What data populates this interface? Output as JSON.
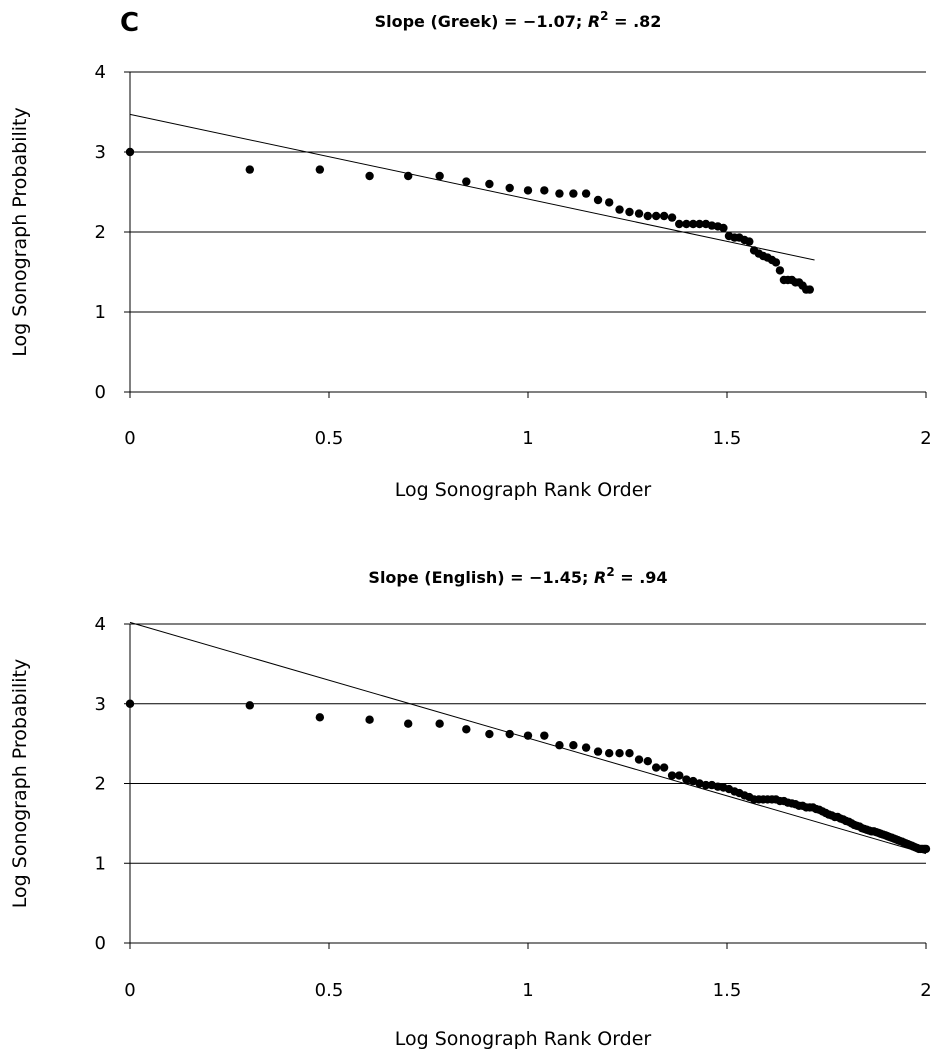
{
  "panel_letter": "C",
  "chart_data": [
    {
      "type": "scatter",
      "title_prefix": "Slope (Greek) = −1.07; ",
      "title_r": "R",
      "title_sup": "2",
      "title_suffix": " = .82",
      "xlabel": "Log Sonograph Rank Order",
      "ylabel": "Log  Sonograph Probability",
      "xlim": [
        0,
        2
      ],
      "ylim": [
        0,
        4
      ],
      "x_ticks": [
        "0",
        "0.5",
        "1",
        "1.5",
        "2"
      ],
      "y_ticks": [
        "0",
        "1",
        "2",
        "3",
        "4"
      ],
      "gridlines": "horizontal",
      "fit_line": {
        "x": [
          0,
          1.72
        ],
        "y": [
          3.47,
          1.65
        ]
      },
      "points": [
        [
          0,
          3.0
        ],
        [
          0.301,
          2.78
        ],
        [
          0.477,
          2.78
        ],
        [
          0.602,
          2.7
        ],
        [
          0.699,
          2.7
        ],
        [
          0.778,
          2.7
        ],
        [
          0.845,
          2.63
        ],
        [
          0.903,
          2.6
        ],
        [
          0.954,
          2.55
        ],
        [
          1.0,
          2.52
        ],
        [
          1.041,
          2.52
        ],
        [
          1.079,
          2.48
        ],
        [
          1.114,
          2.48
        ],
        [
          1.146,
          2.48
        ],
        [
          1.176,
          2.4
        ],
        [
          1.204,
          2.37
        ],
        [
          1.23,
          2.28
        ],
        [
          1.255,
          2.25
        ],
        [
          1.279,
          2.23
        ],
        [
          1.301,
          2.2
        ],
        [
          1.322,
          2.2
        ],
        [
          1.342,
          2.2
        ],
        [
          1.362,
          2.18
        ],
        [
          1.38,
          2.1
        ],
        [
          1.398,
          2.1
        ],
        [
          1.415,
          2.1
        ],
        [
          1.431,
          2.1
        ],
        [
          1.447,
          2.1
        ],
        [
          1.462,
          2.08
        ],
        [
          1.477,
          2.07
        ],
        [
          1.491,
          2.05
        ],
        [
          1.505,
          1.95
        ],
        [
          1.519,
          1.93
        ],
        [
          1.531,
          1.93
        ],
        [
          1.544,
          1.9
        ],
        [
          1.556,
          1.88
        ],
        [
          1.568,
          1.77
        ],
        [
          1.58,
          1.73
        ],
        [
          1.591,
          1.7
        ],
        [
          1.602,
          1.68
        ],
        [
          1.613,
          1.65
        ],
        [
          1.623,
          1.62
        ],
        [
          1.633,
          1.52
        ],
        [
          1.643,
          1.4
        ],
        [
          1.653,
          1.4
        ],
        [
          1.663,
          1.4
        ],
        [
          1.672,
          1.37
        ],
        [
          1.681,
          1.37
        ],
        [
          1.69,
          1.33
        ],
        [
          1.699,
          1.28
        ],
        [
          1.708,
          1.28
        ]
      ]
    },
    {
      "type": "scatter",
      "title_prefix": "Slope (English) = −1.45; ",
      "title_r": "R",
      "title_sup": "2",
      "title_suffix": " = .94",
      "xlabel": "Log Sonograph Rank Order",
      "ylabel": "Log Sonograph Probability",
      "xlim": [
        0,
        2
      ],
      "ylim": [
        0,
        4
      ],
      "x_ticks": [
        "0",
        "0.5",
        "1",
        "1.5",
        "2"
      ],
      "y_ticks": [
        "0",
        "1",
        "2",
        "3",
        "4"
      ],
      "gridlines": "horizontal",
      "fit_line": {
        "x": [
          0,
          2.0
        ],
        "y": [
          4.02,
          1.12
        ]
      },
      "points": [
        [
          0,
          3.0
        ],
        [
          0.301,
          2.98
        ],
        [
          0.477,
          2.83
        ],
        [
          0.602,
          2.8
        ],
        [
          0.699,
          2.75
        ],
        [
          0.778,
          2.75
        ],
        [
          0.845,
          2.68
        ],
        [
          0.903,
          2.62
        ],
        [
          0.954,
          2.62
        ],
        [
          1.0,
          2.6
        ],
        [
          1.041,
          2.6
        ],
        [
          1.079,
          2.48
        ],
        [
          1.114,
          2.48
        ],
        [
          1.146,
          2.45
        ],
        [
          1.176,
          2.4
        ],
        [
          1.204,
          2.38
        ],
        [
          1.23,
          2.38
        ],
        [
          1.255,
          2.38
        ],
        [
          1.279,
          2.3
        ],
        [
          1.301,
          2.28
        ],
        [
          1.322,
          2.2
        ],
        [
          1.342,
          2.2
        ],
        [
          1.362,
          2.1
        ],
        [
          1.38,
          2.1
        ],
        [
          1.398,
          2.05
        ],
        [
          1.415,
          2.03
        ],
        [
          1.431,
          2.0
        ],
        [
          1.447,
          1.98
        ],
        [
          1.462,
          1.98
        ],
        [
          1.477,
          1.96
        ],
        [
          1.491,
          1.95
        ],
        [
          1.505,
          1.93
        ],
        [
          1.519,
          1.9
        ],
        [
          1.531,
          1.88
        ],
        [
          1.544,
          1.85
        ],
        [
          1.556,
          1.83
        ],
        [
          1.568,
          1.8
        ],
        [
          1.58,
          1.8
        ],
        [
          1.591,
          1.8
        ],
        [
          1.602,
          1.8
        ],
        [
          1.613,
          1.8
        ],
        [
          1.623,
          1.8
        ],
        [
          1.633,
          1.78
        ],
        [
          1.643,
          1.78
        ],
        [
          1.653,
          1.76
        ],
        [
          1.663,
          1.75
        ],
        [
          1.672,
          1.74
        ],
        [
          1.681,
          1.72
        ],
        [
          1.69,
          1.72
        ],
        [
          1.699,
          1.7
        ],
        [
          1.708,
          1.7
        ],
        [
          1.716,
          1.7
        ],
        [
          1.724,
          1.68
        ],
        [
          1.732,
          1.67
        ],
        [
          1.74,
          1.65
        ],
        [
          1.748,
          1.63
        ],
        [
          1.756,
          1.61
        ],
        [
          1.763,
          1.6
        ],
        [
          1.771,
          1.58
        ],
        [
          1.778,
          1.58
        ],
        [
          1.785,
          1.56
        ],
        [
          1.792,
          1.55
        ],
        [
          1.799,
          1.53
        ],
        [
          1.806,
          1.52
        ],
        [
          1.813,
          1.5
        ],
        [
          1.82,
          1.48
        ],
        [
          1.826,
          1.47
        ],
        [
          1.833,
          1.46
        ],
        [
          1.839,
          1.44
        ],
        [
          1.845,
          1.43
        ],
        [
          1.851,
          1.42
        ],
        [
          1.857,
          1.41
        ],
        [
          1.863,
          1.4
        ],
        [
          1.869,
          1.4
        ],
        [
          1.875,
          1.39
        ],
        [
          1.881,
          1.38
        ],
        [
          1.886,
          1.37
        ],
        [
          1.892,
          1.36
        ],
        [
          1.898,
          1.35
        ],
        [
          1.903,
          1.34
        ],
        [
          1.908,
          1.33
        ],
        [
          1.914,
          1.32
        ],
        [
          1.919,
          1.31
        ],
        [
          1.924,
          1.3
        ],
        [
          1.929,
          1.29
        ],
        [
          1.934,
          1.28
        ],
        [
          1.94,
          1.27
        ],
        [
          1.944,
          1.26
        ],
        [
          1.949,
          1.25
        ],
        [
          1.954,
          1.24
        ],
        [
          1.959,
          1.23
        ],
        [
          1.964,
          1.22
        ],
        [
          1.968,
          1.21
        ],
        [
          1.973,
          1.2
        ],
        [
          1.978,
          1.19
        ],
        [
          1.982,
          1.18
        ],
        [
          1.987,
          1.18
        ],
        [
          1.991,
          1.18
        ],
        [
          1.996,
          1.18
        ],
        [
          2.0,
          1.18
        ]
      ]
    }
  ]
}
